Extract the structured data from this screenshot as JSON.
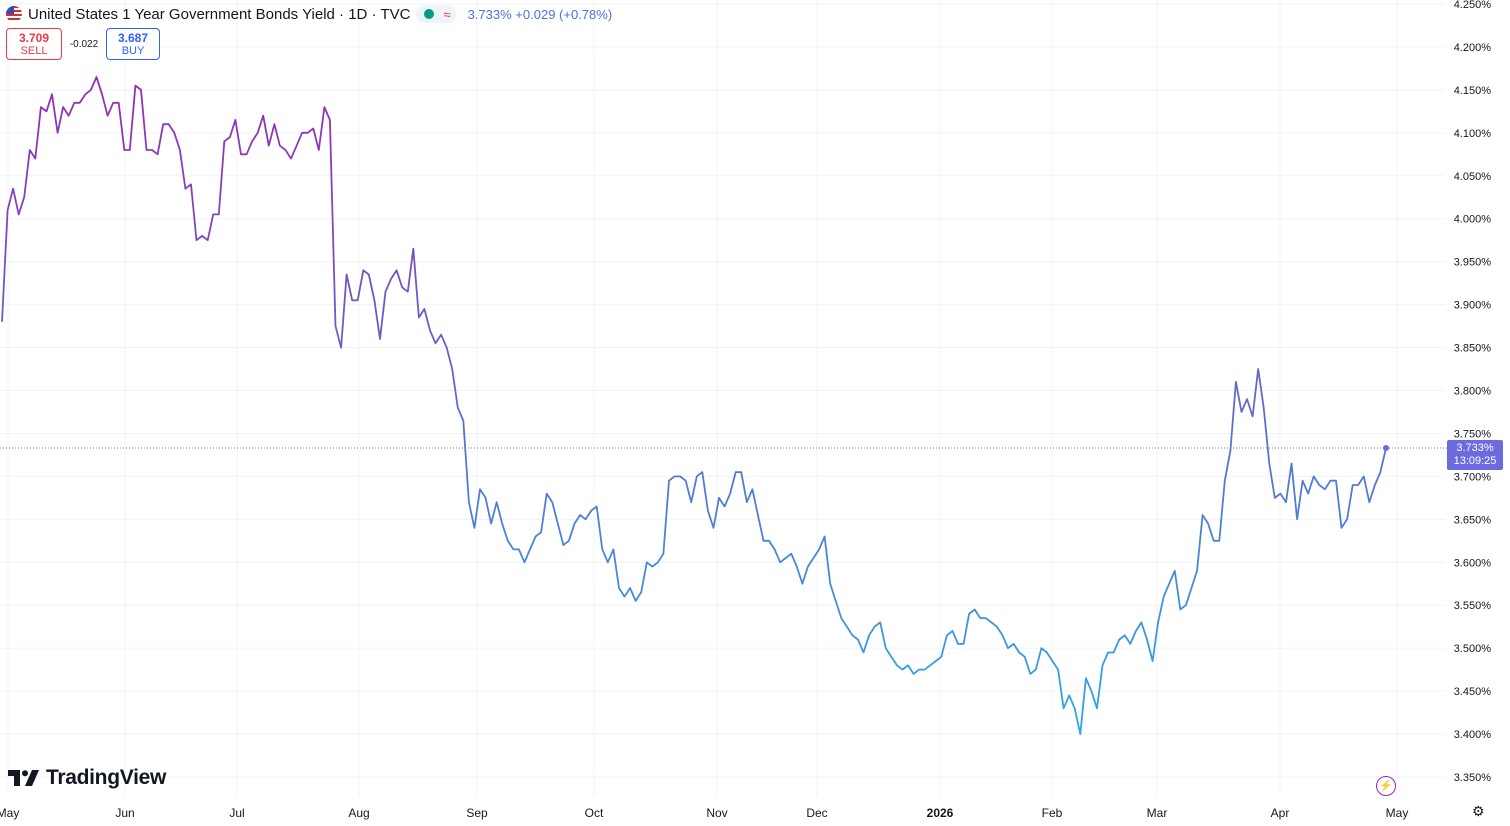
{
  "header": {
    "title": "United States 1 Year Government Bonds Yield · 1D · TVC",
    "approx_symbol": "≈",
    "last": "3.733%",
    "change": "+0.029 (+0.78%)",
    "flag_icon": "us-flag-icon",
    "status_color": "#089981"
  },
  "quote": {
    "sell_price": "3.709",
    "sell_label": "SELL",
    "spread": "-0.022",
    "buy_price": "3.687",
    "buy_label": "BUY",
    "sell_color": "#f23645",
    "buy_color": "#2962ff"
  },
  "price_tag": {
    "value": "3.733%",
    "countdown": "13:09:25",
    "color": "#6d6ae0"
  },
  "branding": {
    "logo_text": "TradingView"
  },
  "icons": {
    "bolt": "lightning-icon",
    "settings": "gear-icon"
  },
  "colors": {
    "line_start": "#9c27b0",
    "line_end": "#2ca8e6"
  },
  "chart_data": {
    "type": "line",
    "x_axis_labels": [
      "May",
      "Jun",
      "Jul",
      "Aug",
      "Sep",
      "Oct",
      "Nov",
      "Dec",
      "2026",
      "Feb",
      "Mar",
      "Apr",
      "May"
    ],
    "y_axis_labels": [
      "4.250%",
      "4.200%",
      "4.150%",
      "4.100%",
      "4.050%",
      "4.000%",
      "3.950%",
      "3.900%",
      "3.850%",
      "3.800%",
      "3.750%",
      "3.700%",
      "3.650%",
      "3.600%",
      "3.550%",
      "3.500%",
      "3.450%",
      "3.400%",
      "3.350%"
    ],
    "ylim": [
      3.325,
      4.255
    ],
    "grid": true,
    "series": [
      {
        "values": [
          3.88,
          4.01,
          4.035,
          4.005,
          4.025,
          4.08,
          4.07,
          4.13,
          4.125,
          4.145,
          4.1,
          4.13,
          4.12,
          4.135,
          4.135,
          4.145,
          4.15,
          4.165,
          4.145,
          4.12,
          4.135,
          4.135,
          4.08,
          4.08,
          4.155,
          4.15,
          4.08,
          4.08,
          4.075,
          4.11,
          4.11,
          4.1,
          4.08,
          4.035,
          4.04,
          3.975,
          3.98,
          3.975,
          4.005,
          4.005,
          4.09,
          4.095,
          4.115,
          4.075,
          4.075,
          4.09,
          4.1,
          4.12,
          4.085,
          4.11,
          4.085,
          4.08,
          4.07,
          4.085,
          4.1,
          4.1,
          4.105,
          4.08,
          4.13,
          4.115,
          3.875,
          3.85,
          3.935,
          3.905,
          3.905,
          3.94,
          3.935,
          3.905,
          3.86,
          3.915,
          3.93,
          3.94,
          3.92,
          3.915,
          3.965,
          3.885,
          3.895,
          3.87,
          3.855,
          3.865,
          3.85,
          3.825,
          3.78,
          3.765,
          3.67,
          3.64,
          3.685,
          3.675,
          3.645,
          3.67,
          3.645,
          3.625,
          3.615,
          3.615,
          3.6,
          3.615,
          3.63,
          3.635,
          3.68,
          3.67,
          3.645,
          3.62,
          3.625,
          3.645,
          3.655,
          3.65,
          3.66,
          3.665,
          3.615,
          3.6,
          3.615,
          3.57,
          3.56,
          3.57,
          3.555,
          3.565,
          3.6,
          3.595,
          3.6,
          3.61,
          3.695,
          3.7,
          3.7,
          3.695,
          3.67,
          3.7,
          3.705,
          3.66,
          3.64,
          3.675,
          3.665,
          3.68,
          3.705,
          3.705,
          3.67,
          3.685,
          3.655,
          3.625,
          3.625,
          3.615,
          3.6,
          3.605,
          3.61,
          3.595,
          3.575,
          3.595,
          3.605,
          3.615,
          3.63,
          3.575,
          3.555,
          3.535,
          3.525,
          3.515,
          3.51,
          3.495,
          3.515,
          3.525,
          3.53,
          3.5,
          3.49,
          3.48,
          3.475,
          3.48,
          3.47,
          3.475,
          3.475,
          3.48,
          3.485,
          3.49,
          3.515,
          3.52,
          3.505,
          3.505,
          3.54,
          3.545,
          3.535,
          3.535,
          3.53,
          3.525,
          3.515,
          3.5,
          3.505,
          3.495,
          3.49,
          3.47,
          3.475,
          3.5,
          3.495,
          3.485,
          3.475,
          3.43,
          3.445,
          3.43,
          3.4,
          3.465,
          3.45,
          3.43,
          3.48,
          3.495,
          3.495,
          3.51,
          3.515,
          3.505,
          3.52,
          3.53,
          3.51,
          3.485,
          3.53,
          3.56,
          3.575,
          3.59,
          3.545,
          3.55,
          3.57,
          3.59,
          3.655,
          3.645,
          3.625,
          3.625,
          3.695,
          3.73,
          3.81,
          3.775,
          3.79,
          3.77,
          3.825,
          3.78,
          3.715,
          3.675,
          3.68,
          3.67,
          3.715,
          3.65,
          3.695,
          3.68,
          3.7,
          3.69,
          3.685,
          3.695,
          3.695,
          3.64,
          3.65,
          3.69,
          3.69,
          3.7,
          3.67,
          3.69,
          3.705,
          3.733
        ]
      }
    ]
  }
}
